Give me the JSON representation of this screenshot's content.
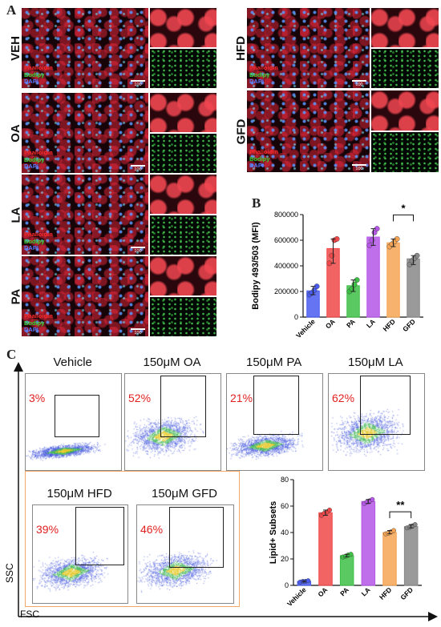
{
  "panel_A": {
    "letter": "A",
    "stain_labels": {
      "phalloidin": "Phalloidin",
      "bodipy": "Bodipy",
      "dapi": "DAPI"
    },
    "scale_bar": "100 μm",
    "rows": [
      "VEH",
      "OA",
      "LA",
      "PA",
      "HFD",
      "GFD"
    ]
  },
  "panel_B": {
    "letter": "B",
    "significance": "*"
  },
  "panel_C": {
    "letter": "C",
    "x_axis_label": "FSC",
    "y_axis_label": "SSC",
    "flow_plots": [
      {
        "title": "Vehicle",
        "percent": "3%"
      },
      {
        "title": "150μM OA",
        "percent": "52%"
      },
      {
        "title": "150μM PA",
        "percent": "21%"
      },
      {
        "title": "150μM LA",
        "percent": "62%"
      },
      {
        "title": "150μM HFD",
        "percent": "39%"
      },
      {
        "title": "150μM GFD",
        "percent": "46%"
      }
    ],
    "significance": "**"
  },
  "chart_data": [
    {
      "type": "bar",
      "panel": "B",
      "title": "",
      "ylabel": "Bodipy 493/503 (MFI)",
      "xlabel": "",
      "categories": [
        "Vehicle",
        "OA",
        "PA",
        "LA",
        "HFD",
        "GFD"
      ],
      "values": [
        205000,
        535000,
        245000,
        625000,
        580000,
        455000
      ],
      "points": [
        [
          175000,
          190000,
          210000,
          240000
        ],
        [
          420000,
          480000,
          600000,
          610000
        ],
        [
          200000,
          220000,
          255000,
          290000
        ],
        [
          560000,
          600000,
          660000,
          690000
        ],
        [
          550000,
          570000,
          590000,
          610000
        ],
        [
          410000,
          440000,
          460000,
          480000
        ]
      ],
      "colors": [
        "#4a5cf0",
        "#f04848",
        "#3ec046",
        "#b556e8",
        "#f6a454",
        "#888888"
      ],
      "ylim": [
        0,
        800000
      ],
      "yticks": [
        "0",
        "200000",
        "400000",
        "600000",
        "800000"
      ],
      "significance": {
        "between": [
          "HFD",
          "GFD"
        ],
        "label": "*"
      }
    },
    {
      "type": "bar",
      "panel": "C",
      "title": "",
      "ylabel": "Lipid+ Subsets",
      "xlabel": "",
      "categories": [
        "Vehicle",
        "OA",
        "PA",
        "LA",
        "HFD",
        "GFD"
      ],
      "values": [
        3,
        55,
        22.5,
        63.5,
        40,
        44.5
      ],
      "points": [
        [
          2.5,
          3,
          3,
          3.5
        ],
        [
          53,
          54.5,
          55.5,
          57
        ],
        [
          21.5,
          22,
          23,
          23.5
        ],
        [
          62,
          63,
          64,
          65
        ],
        [
          39,
          39.5,
          40.5,
          41.5
        ],
        [
          43.5,
          44,
          45,
          46
        ]
      ],
      "colors": [
        "#4a5cf0",
        "#f04848",
        "#3ec046",
        "#b556e8",
        "#f6a454",
        "#888888"
      ],
      "ylim": [
        0,
        80
      ],
      "yticks": [
        "0",
        "20",
        "40",
        "60",
        "80"
      ],
      "significance": {
        "between": [
          "HFD",
          "GFD"
        ],
        "label": "**"
      }
    }
  ]
}
